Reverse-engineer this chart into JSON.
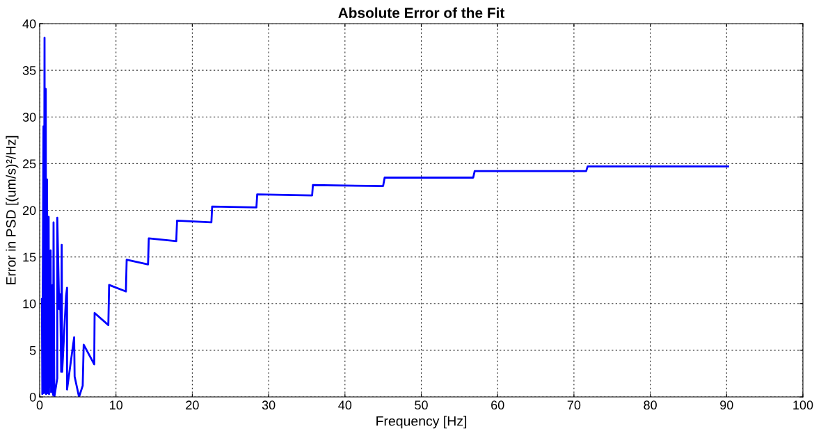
{
  "chart_data": {
    "type": "line",
    "title": "Absolute Error of the Fit",
    "xlabel": "Frequency [Hz]",
    "ylabel": "Error in PSD [(um/s)²/Hz]",
    "xlim": [
      0,
      100
    ],
    "ylim": [
      0,
      40
    ],
    "xticks": [
      0,
      10,
      20,
      30,
      40,
      50,
      60,
      70,
      80,
      90,
      100
    ],
    "yticks": [
      0,
      5,
      10,
      15,
      20,
      25,
      30,
      35,
      40
    ],
    "grid": true,
    "series": [
      {
        "color": "#0000ff",
        "x": [
          0.3,
          0.35,
          0.5,
          0.55,
          0.64,
          0.7,
          0.8,
          0.85,
          0.97,
          1.02,
          1.18,
          1.23,
          1.44,
          1.5,
          1.7,
          1.76,
          1.82,
          1.92,
          2.31,
          2.31,
          2.56,
          2.69,
          2.82,
          2.89,
          2.95,
          3.46,
          3.59,
          3.59,
          4.52,
          4.58,
          5.16,
          5.64,
          5.77,
          7.15,
          7.2,
          9.0,
          9.1,
          11.3,
          11.4,
          14.2,
          14.3,
          17.9,
          18.0,
          22.5,
          22.6,
          28.4,
          28.5,
          35.7,
          35.8,
          45.0,
          45.2,
          56.8,
          57.0,
          71.6,
          71.8,
          90.2
        ],
        "values": [
          10.5,
          0.3,
          29,
          0.4,
          38.5,
          0.5,
          33,
          0.3,
          23.3,
          0.4,
          19.3,
          0.3,
          15.7,
          0.5,
          12.0,
          0.2,
          18.7,
          0,
          2.0,
          19.2,
          9.4,
          11.0,
          2.7,
          16.3,
          2.7,
          10.8,
          11.7,
          0.8,
          6.4,
          2.2,
          0,
          1.2,
          5.6,
          3.5,
          9.0,
          7.7,
          12.0,
          11.3,
          14.7,
          14.2,
          17.0,
          16.7,
          18.9,
          18.7,
          20.4,
          20.3,
          21.7,
          21.6,
          22.7,
          22.6,
          23.5,
          23.5,
          24.2,
          24.2,
          24.7,
          24.7
        ]
      }
    ]
  }
}
